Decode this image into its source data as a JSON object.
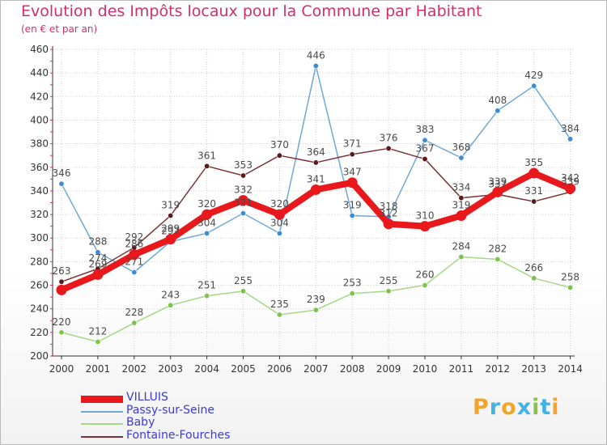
{
  "title": "Evolution des Impôts locaux pour la Commune par Habitant",
  "subtitle": "(en € et par an)",
  "logo": {
    "text": "Proxiti",
    "letters": [
      {
        "ch": "P",
        "color": "#f2a52a"
      },
      {
        "ch": "r",
        "color": "#43b3e4"
      },
      {
        "ch": "o",
        "color": "#f2a52a"
      },
      {
        "ch": "x",
        "color": "#43b3e4"
      },
      {
        "ch": "i",
        "color": "#8bc34a"
      },
      {
        "ch": "t",
        "color": "#43b3e4"
      },
      {
        "ch": "i",
        "color": "#f2a52a"
      }
    ]
  },
  "chart_data": {
    "type": "line",
    "title": "Evolution des Impôts locaux pour la Commune par Habitant",
    "subtitle": "(en € et par an)",
    "xlabel": "",
    "ylabel": "",
    "categories": [
      "2000",
      "2001",
      "2002",
      "2003",
      "2004",
      "2005",
      "2006",
      "2007",
      "2008",
      "2009",
      "2010",
      "2011",
      "2012",
      "2013",
      "2014"
    ],
    "ylim": [
      200,
      460
    ],
    "yticks": [
      200,
      220,
      240,
      260,
      280,
      300,
      320,
      340,
      360,
      380,
      400,
      420,
      440,
      460
    ],
    "grid": true,
    "legend_position": "bottom-left",
    "series": [
      {
        "name": "VILLUIS",
        "color": "#e8181c",
        "markerColor": "#e8181c",
        "labelColor": "#4a4a4a",
        "values": [
          256,
          269,
          286,
          299,
          320,
          332,
          320,
          341,
          347,
          312,
          310,
          319,
          339,
          355,
          342
        ],
        "labels": [
          "",
          "269",
          "286",
          "299",
          "320",
          "332",
          "320",
          "341",
          "347",
          "312",
          "310",
          "319",
          "339",
          "355",
          "342"
        ]
      },
      {
        "name": "Passy-sur-Seine",
        "color": "#6fa8d6",
        "markerColor": "#3c8cd0",
        "labelColor": "#4a4a4a",
        "values": [
          346,
          288,
          271,
          297,
          304,
          321,
          304,
          446,
          319,
          318,
          383,
          368,
          408,
          429,
          384
        ],
        "labels": [
          "346",
          "288",
          "271",
          "297",
          "304",
          "321",
          "304",
          "446",
          "319",
          "318",
          "383",
          "368",
          "408",
          "429",
          "384"
        ]
      },
      {
        "name": "Baby",
        "color": "#a4d884",
        "markerColor": "#7cc34e",
        "labelColor": "#4a4a4a",
        "values": [
          220,
          212,
          228,
          243,
          251,
          255,
          235,
          239,
          253,
          255,
          260,
          284,
          282,
          266,
          258
        ],
        "labels": [
          "220",
          "212",
          "228",
          "243",
          "251",
          "255",
          "235",
          "239",
          "253",
          "255",
          "260",
          "284",
          "282",
          "266",
          "258"
        ]
      },
      {
        "name": "Fontaine-Fourches",
        "color": "#7a3436",
        "markerColor": "#5a1a1c",
        "labelColor": "#4a4a4a",
        "values": [
          263,
          274,
          292,
          319,
          361,
          353,
          370,
          364,
          371,
          376,
          367,
          334,
          337,
          331,
          339
        ],
        "labels": [
          "263",
          "274",
          "292",
          "319",
          "361",
          "353",
          "370",
          "364",
          "371",
          "376",
          "367",
          "334",
          "337",
          "331",
          "339"
        ]
      }
    ]
  }
}
